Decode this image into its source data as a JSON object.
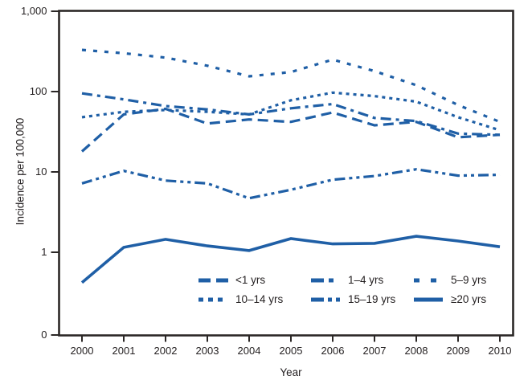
{
  "figure": {
    "background": "#ffffff",
    "axis_color": "#2b2726",
    "text_color": "#231f20"
  },
  "chart_data": {
    "type": "line",
    "title": "",
    "xlabel": "Year",
    "ylabel": "Incidence per 100,000",
    "y_scale": "log",
    "grid": false,
    "legend_position": "inside-bottom-right",
    "line_color": "#1f5fa6",
    "x": [
      2000,
      2001,
      2002,
      2003,
      2004,
      2005,
      2006,
      2007,
      2008,
      2009,
      2010
    ],
    "x_tick_labels": [
      "2000",
      "2001",
      "2002",
      "2003",
      "2004",
      "2005",
      "2006",
      "2007",
      "2008",
      "2009",
      "2010"
    ],
    "y_tick_values": [
      1000,
      100,
      10,
      1,
      0
    ],
    "y_tick_labels": [
      "1,000",
      "100",
      "10",
      "1",
      "0"
    ],
    "ylim_note": "log axis with break to 0 at bottom",
    "series": [
      {
        "name": "<1 yrs",
        "dash": "long-dash",
        "values": [
          18,
          52,
          61,
          40,
          45,
          42,
          55,
          38,
          42,
          27,
          29
        ]
      },
      {
        "name": "1–4 yrs",
        "dash": "dash-dot",
        "values": [
          95,
          80,
          66,
          60,
          52,
          62,
          70,
          47,
          43,
          30,
          29
        ]
      },
      {
        "name": "5–9 yrs",
        "dash": "sparse-dot",
        "values": [
          330,
          300,
          265,
          210,
          155,
          175,
          250,
          180,
          120,
          68,
          42
        ]
      },
      {
        "name": "10–14 yrs",
        "dash": "dot",
        "values": [
          48,
          56,
          59,
          56,
          52,
          78,
          97,
          88,
          75,
          48,
          33
        ]
      },
      {
        "name": "15–19 yrs",
        "dash": "dash-dot-dot",
        "values": [
          7.2,
          10.3,
          7.8,
          7.2,
          4.7,
          6.0,
          8.0,
          8.9,
          10.8,
          9.0,
          9.2
        ]
      },
      {
        "name": "≥20 yrs",
        "dash": "solid",
        "values": [
          0.42,
          1.15,
          1.45,
          1.2,
          1.05,
          1.48,
          1.27,
          1.29,
          1.58,
          1.38,
          1.17
        ]
      }
    ]
  }
}
